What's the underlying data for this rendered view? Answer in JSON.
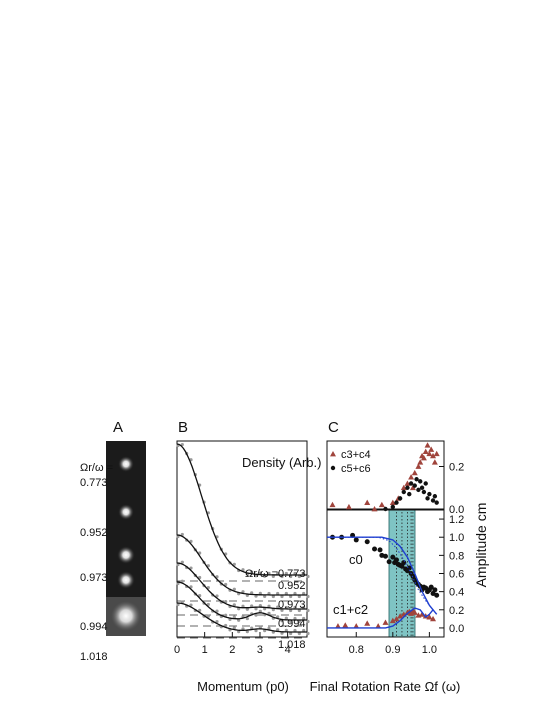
{
  "panels": {
    "a": "A",
    "b": "B",
    "c": "C"
  },
  "panel_a": {
    "ratio_label": "Ωr/ω =",
    "rates": [
      "0.773",
      "0.952",
      "0.973",
      "0.994",
      "1.018"
    ]
  },
  "chart_data": [
    {
      "type": "line",
      "panel": "B",
      "title": "",
      "xlabel": "Momentum (p0)",
      "ylabel": "",
      "annotation": "Density (Arb.)",
      "xlim": [
        0,
        4.7
      ],
      "xticks": [
        "0",
        "1",
        "2",
        "3",
        "4"
      ],
      "series": [
        {
          "name": "Ωr/ω =0.773",
          "offset": 0.25,
          "amp": 3.3,
          "width": 1.25,
          "hump": 0.0
        },
        {
          "name": "0.952",
          "offset": 0.13,
          "amp": 1.3,
          "width": 1.25,
          "hump": 0.0
        },
        {
          "name": "0.973",
          "offset": 0.05,
          "amp": 1.05,
          "width": 1.2,
          "hump": 0.03
        },
        {
          "name": "0.994",
          "offset": -0.03,
          "amp": 0.95,
          "width": 1.1,
          "hump": 0.12
        },
        {
          "name": "1.018",
          "offset": -0.12,
          "amp": 0.75,
          "width": 1.3,
          "hump": 0.05
        }
      ]
    },
    {
      "type": "scatter",
      "panel": "C-top",
      "ylim": [
        0,
        0.32
      ],
      "yticks": [
        "0.0",
        "0.2"
      ],
      "xlim": [
        0.72,
        1.04
      ],
      "legend": [
        "c3+c4",
        "c5+c6"
      ],
      "series": [
        {
          "name": "c3+c4",
          "color": "#a0443c",
          "points": [
            [
              0.735,
              0.02
            ],
            [
              0.78,
              0.01
            ],
            [
              0.83,
              0.03
            ],
            [
              0.85,
              0.0
            ],
            [
              0.87,
              0.02
            ],
            [
              0.9,
              0.03
            ],
            [
              0.915,
              0.05
            ],
            [
              0.93,
              0.1
            ],
            [
              0.94,
              0.12
            ],
            [
              0.95,
              0.15
            ],
            [
              0.955,
              0.1
            ],
            [
              0.96,
              0.17
            ],
            [
              0.97,
              0.2
            ],
            [
              0.975,
              0.22
            ],
            [
              0.98,
              0.25
            ],
            [
              0.985,
              0.24
            ],
            [
              0.99,
              0.27
            ],
            [
              0.995,
              0.3
            ],
            [
              1.0,
              0.26
            ],
            [
              1.005,
              0.28
            ],
            [
              1.01,
              0.25
            ],
            [
              1.015,
              0.22
            ],
            [
              1.02,
              0.26
            ]
          ]
        },
        {
          "name": "c5+c6",
          "color": "#111111",
          "points": [
            [
              0.88,
              0.0
            ],
            [
              0.9,
              0.01
            ],
            [
              0.91,
              0.03
            ],
            [
              0.92,
              0.05
            ],
            [
              0.93,
              0.08
            ],
            [
              0.94,
              0.1
            ],
            [
              0.945,
              0.07
            ],
            [
              0.95,
              0.12
            ],
            [
              0.96,
              0.11
            ],
            [
              0.965,
              0.14
            ],
            [
              0.97,
              0.09
            ],
            [
              0.975,
              0.13
            ],
            [
              0.98,
              0.1
            ],
            [
              0.985,
              0.08
            ],
            [
              0.99,
              0.12
            ],
            [
              0.995,
              0.05
            ],
            [
              1.0,
              0.07
            ],
            [
              1.01,
              0.04
            ],
            [
              1.015,
              0.06
            ],
            [
              1.02,
              0.03
            ]
          ]
        }
      ]
    },
    {
      "type": "scatter",
      "panel": "C-bottom",
      "xlabel": "Final Rotation Rate Ωf (ω)",
      "ylabel": "Amplitude cm",
      "xlim": [
        0.72,
        1.04
      ],
      "ylim": [
        -0.1,
        1.3
      ],
      "xticks": [
        "0.8",
        "0.9",
        "1.0"
      ],
      "yticks": [
        "0.0",
        "0.2",
        "0.4",
        "0.6",
        "0.8",
        "1.0",
        "1.2"
      ],
      "shaded_band": [
        0.9,
        0.965
      ],
      "dotted_verticals": [
        0.91,
        0.925,
        0.94,
        0.95,
        0.955
      ],
      "labels": {
        "c0": "c0",
        "c12": "c1+c2"
      },
      "series": [
        {
          "name": "c0",
          "color": "#111111",
          "points": [
            [
              0.735,
              1.0
            ],
            [
              0.76,
              1.0
            ],
            [
              0.79,
              1.02
            ],
            [
              0.8,
              0.97
            ],
            [
              0.83,
              0.95
            ],
            [
              0.85,
              0.87
            ],
            [
              0.865,
              0.86
            ],
            [
              0.87,
              0.8
            ],
            [
              0.88,
              0.79
            ],
            [
              0.89,
              0.73
            ],
            [
              0.9,
              0.78
            ],
            [
              0.905,
              0.72
            ],
            [
              0.91,
              0.75
            ],
            [
              0.915,
              0.7
            ],
            [
              0.92,
              0.69
            ],
            [
              0.925,
              0.68
            ],
            [
              0.93,
              0.72
            ],
            [
              0.935,
              0.65
            ],
            [
              0.94,
              0.63
            ],
            [
              0.945,
              0.66
            ],
            [
              0.95,
              0.6
            ],
            [
              0.955,
              0.57
            ],
            [
              0.96,
              0.53
            ],
            [
              0.965,
              0.5
            ],
            [
              0.97,
              0.48
            ],
            [
              0.975,
              0.46
            ],
            [
              0.98,
              0.42
            ],
            [
              0.985,
              0.45
            ],
            [
              0.99,
              0.44
            ],
            [
              0.995,
              0.4
            ],
            [
              1.0,
              0.42
            ],
            [
              1.005,
              0.45
            ],
            [
              1.01,
              0.38
            ],
            [
              1.015,
              0.42
            ],
            [
              1.02,
              0.36
            ]
          ]
        },
        {
          "name": "c1+c2",
          "color": "#a0443c",
          "points": [
            [
              0.75,
              0.02
            ],
            [
              0.77,
              0.03
            ],
            [
              0.8,
              0.02
            ],
            [
              0.83,
              0.05
            ],
            [
              0.86,
              0.02
            ],
            [
              0.88,
              0.06
            ],
            [
              0.9,
              0.08
            ],
            [
              0.91,
              0.1
            ],
            [
              0.92,
              0.13
            ],
            [
              0.93,
              0.15
            ],
            [
              0.94,
              0.17
            ],
            [
              0.945,
              0.18
            ],
            [
              0.95,
              0.16
            ],
            [
              0.955,
              0.19
            ],
            [
              0.96,
              0.17
            ],
            [
              0.97,
              0.14
            ],
            [
              0.98,
              0.15
            ],
            [
              0.99,
              0.13
            ],
            [
              1.0,
              0.12
            ],
            [
              1.01,
              0.1
            ]
          ]
        },
        {
          "name": "c0-theory",
          "color": "#1f3fd0",
          "points": [
            [
              0.72,
              1.0
            ],
            [
              0.87,
              1.0
            ],
            [
              0.9,
              0.97
            ],
            [
              0.92,
              0.9
            ],
            [
              0.94,
              0.78
            ],
            [
              0.96,
              0.6
            ],
            [
              0.98,
              0.4
            ],
            [
              1.0,
              0.25
            ],
            [
              1.02,
              0.15
            ]
          ]
        },
        {
          "name": "c0-dotted",
          "color": "#1f3fd0",
          "points": [
            [
              0.72,
              1.0
            ],
            [
              0.86,
              1.0
            ],
            [
              0.89,
              0.96
            ],
            [
              0.91,
              0.88
            ],
            [
              0.93,
              0.75
            ],
            [
              0.95,
              0.6
            ],
            [
              0.97,
              0.42
            ],
            [
              0.99,
              0.3
            ],
            [
              1.01,
              0.2
            ]
          ]
        },
        {
          "name": "c12-theory",
          "color": "#1f3fd0",
          "points": [
            [
              0.72,
              0.0
            ],
            [
              0.88,
              0.0
            ],
            [
              0.9,
              0.02
            ],
            [
              0.92,
              0.08
            ],
            [
              0.94,
              0.16
            ],
            [
              0.96,
              0.22
            ],
            [
              0.975,
              0.2
            ],
            [
              0.99,
              0.12
            ],
            [
              1.0,
              0.15
            ],
            [
              1.01,
              0.2
            ]
          ]
        }
      ]
    }
  ]
}
